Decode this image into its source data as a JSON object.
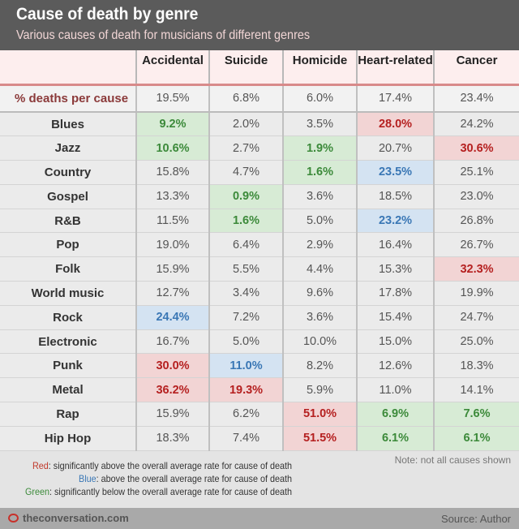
{
  "header": {
    "title": "Cause of death by genre",
    "subtitle": "Various causes of death for musicians of different genres"
  },
  "chart_data": {
    "type": "table",
    "columns": [
      "Accidental",
      "Suicide",
      "Homicide",
      "Heart-related",
      "Cancer"
    ],
    "average": {
      "label": "% deaths per cause",
      "values": [
        "19.5%",
        "6.8%",
        "6.0%",
        "17.4%",
        "23.4%"
      ]
    },
    "rows": [
      {
        "genre": "Blues",
        "values": [
          "9.2%",
          "2.0%",
          "3.5%",
          "28.0%",
          "24.2%"
        ],
        "flags": [
          "g",
          "",
          "",
          "r",
          ""
        ]
      },
      {
        "genre": "Jazz",
        "values": [
          "10.6%",
          "2.7%",
          "1.9%",
          "20.7%",
          "30.6%"
        ],
        "flags": [
          "g",
          "",
          "g",
          "",
          "r"
        ]
      },
      {
        "genre": "Country",
        "values": [
          "15.8%",
          "4.7%",
          "1.6%",
          "23.5%",
          "25.1%"
        ],
        "flags": [
          "",
          "",
          "g",
          "b",
          ""
        ]
      },
      {
        "genre": "Gospel",
        "values": [
          "13.3%",
          "0.9%",
          "3.6%",
          "18.5%",
          "23.0%"
        ],
        "flags": [
          "",
          "g",
          "",
          "",
          ""
        ]
      },
      {
        "genre": "R&B",
        "values": [
          "11.5%",
          "1.6%",
          "5.0%",
          "23.2%",
          "26.8%"
        ],
        "flags": [
          "",
          "g",
          "",
          "b",
          ""
        ]
      },
      {
        "genre": "Pop",
        "values": [
          "19.0%",
          "6.4%",
          "2.9%",
          "16.4%",
          "26.7%"
        ],
        "flags": [
          "",
          "",
          "",
          "",
          ""
        ]
      },
      {
        "genre": "Folk",
        "values": [
          "15.9%",
          "5.5%",
          "4.4%",
          "15.3%",
          "32.3%"
        ],
        "flags": [
          "",
          "",
          "",
          "",
          "r"
        ]
      },
      {
        "genre": "World music",
        "values": [
          "12.7%",
          "3.4%",
          "9.6%",
          "17.8%",
          "19.9%"
        ],
        "flags": [
          "",
          "",
          "",
          "",
          ""
        ]
      },
      {
        "genre": "Rock",
        "values": [
          "24.4%",
          "7.2%",
          "3.6%",
          "15.4%",
          "24.7%"
        ],
        "flags": [
          "b",
          "",
          "",
          "",
          ""
        ]
      },
      {
        "genre": "Electronic",
        "values": [
          "16.7%",
          "5.0%",
          "10.0%",
          "15.0%",
          "25.0%"
        ],
        "flags": [
          "",
          "",
          "",
          "",
          ""
        ]
      },
      {
        "genre": "Punk",
        "values": [
          "30.0%",
          "11.0%",
          "8.2%",
          "12.6%",
          "18.3%"
        ],
        "flags": [
          "r",
          "b",
          "",
          "",
          ""
        ]
      },
      {
        "genre": "Metal",
        "values": [
          "36.2%",
          "19.3%",
          "5.9%",
          "11.0%",
          "14.1%"
        ],
        "flags": [
          "r",
          "r",
          "",
          "",
          ""
        ]
      },
      {
        "genre": "Rap",
        "values": [
          "15.9%",
          "6.2%",
          "51.0%",
          "6.9%",
          "7.6%"
        ],
        "flags": [
          "",
          "",
          "r",
          "g",
          "g"
        ]
      },
      {
        "genre": "Hip Hop",
        "values": [
          "18.3%",
          "7.4%",
          "51.5%",
          "6.1%",
          "6.1%"
        ],
        "flags": [
          "",
          "",
          "r",
          "g",
          "g"
        ]
      }
    ]
  },
  "legend": [
    {
      "key": "Red",
      "text": ": significantly above the overall average rate for cause of death",
      "color": "#c0392b"
    },
    {
      "key": "Blue",
      "text": ": above the overall average rate for cause of death",
      "color": "#3a77b5"
    },
    {
      "key": "Green",
      "text": ": significantly below the overall average rate for cause of death",
      "color": "#3c8a3a"
    }
  ],
  "note": "Note: not all causes shown",
  "footer": {
    "site": "theconversation.com",
    "source": "Source: Author"
  }
}
